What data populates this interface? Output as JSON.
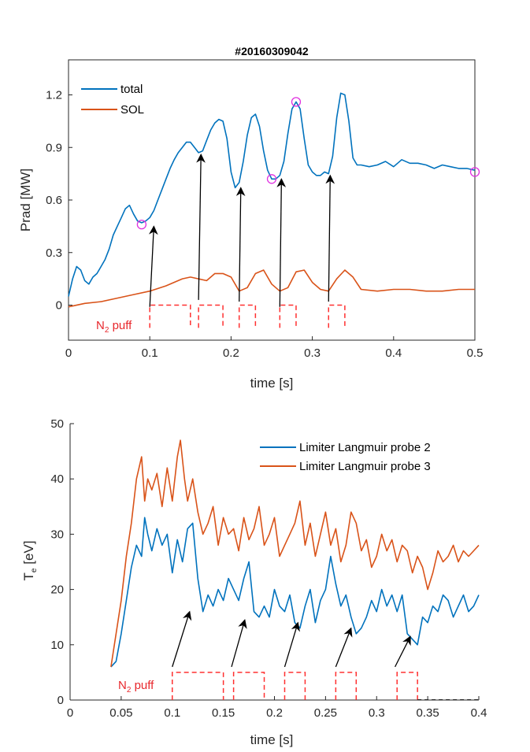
{
  "chart_data": [
    {
      "type": "line",
      "title": "#20160309042",
      "xlabel": "time [s]",
      "ylabel": "Prad [MW]",
      "xlim": [
        0,
        0.5
      ],
      "ylim": [
        -0.2,
        1.4
      ],
      "xticks": [
        0,
        0.1,
        0.2,
        0.3,
        0.4,
        0.5
      ],
      "xtick_labels": [
        "0",
        "0.1",
        "0.2",
        "0.3",
        "0.4",
        "0.5"
      ],
      "yticks": [
        0,
        0.3,
        0.6,
        0.9,
        1.2
      ],
      "ytick_labels": [
        "0",
        "0.3",
        "0.6",
        "0.9",
        "1.2"
      ],
      "grid": false,
      "legend": "top-left",
      "series": [
        {
          "name": "total",
          "color": "#0072BD",
          "x": [
            0,
            0.005,
            0.01,
            0.015,
            0.02,
            0.025,
            0.03,
            0.035,
            0.04,
            0.045,
            0.05,
            0.055,
            0.06,
            0.065,
            0.07,
            0.075,
            0.08,
            0.085,
            0.09,
            0.095,
            0.1,
            0.105,
            0.11,
            0.115,
            0.12,
            0.125,
            0.13,
            0.135,
            0.14,
            0.145,
            0.15,
            0.155,
            0.16,
            0.165,
            0.17,
            0.175,
            0.18,
            0.185,
            0.19,
            0.195,
            0.2,
            0.205,
            0.21,
            0.215,
            0.22,
            0.225,
            0.23,
            0.235,
            0.24,
            0.245,
            0.25,
            0.255,
            0.26,
            0.265,
            0.27,
            0.275,
            0.28,
            0.285,
            0.29,
            0.295,
            0.3,
            0.305,
            0.31,
            0.315,
            0.32,
            0.325,
            0.33,
            0.335,
            0.34,
            0.345,
            0.35,
            0.355,
            0.36,
            0.37,
            0.38,
            0.39,
            0.4,
            0.41,
            0.42,
            0.43,
            0.44,
            0.45,
            0.46,
            0.47,
            0.48,
            0.49,
            0.5
          ],
          "y": [
            0.05,
            0.15,
            0.22,
            0.2,
            0.14,
            0.12,
            0.16,
            0.18,
            0.22,
            0.26,
            0.32,
            0.4,
            0.45,
            0.5,
            0.55,
            0.57,
            0.52,
            0.48,
            0.47,
            0.48,
            0.5,
            0.54,
            0.6,
            0.66,
            0.72,
            0.78,
            0.83,
            0.87,
            0.9,
            0.93,
            0.93,
            0.9,
            0.87,
            0.88,
            0.94,
            1.0,
            1.04,
            1.06,
            1.05,
            0.95,
            0.76,
            0.67,
            0.7,
            0.82,
            0.97,
            1.07,
            1.09,
            1.02,
            0.88,
            0.77,
            0.72,
            0.72,
            0.74,
            0.82,
            0.98,
            1.12,
            1.16,
            1.12,
            0.95,
            0.8,
            0.76,
            0.74,
            0.74,
            0.76,
            0.75,
            0.85,
            1.07,
            1.21,
            1.2,
            1.05,
            0.84,
            0.8,
            0.8,
            0.79,
            0.8,
            0.82,
            0.79,
            0.83,
            0.81,
            0.81,
            0.8,
            0.78,
            0.8,
            0.79,
            0.78,
            0.78,
            0.77
          ]
        },
        {
          "name": "SOL",
          "color": "#D95319",
          "x": [
            0,
            0.02,
            0.04,
            0.06,
            0.08,
            0.1,
            0.12,
            0.14,
            0.15,
            0.16,
            0.17,
            0.18,
            0.19,
            0.2,
            0.21,
            0.22,
            0.23,
            0.24,
            0.25,
            0.26,
            0.27,
            0.28,
            0.29,
            0.3,
            0.31,
            0.32,
            0.33,
            0.34,
            0.35,
            0.36,
            0.38,
            0.4,
            0.42,
            0.44,
            0.46,
            0.48,
            0.5
          ],
          "y": [
            -0.01,
            0.01,
            0.02,
            0.04,
            0.06,
            0.08,
            0.11,
            0.15,
            0.16,
            0.15,
            0.14,
            0.18,
            0.18,
            0.16,
            0.08,
            0.1,
            0.18,
            0.2,
            0.12,
            0.08,
            0.1,
            0.19,
            0.2,
            0.13,
            0.09,
            0.08,
            0.15,
            0.2,
            0.16,
            0.09,
            0.08,
            0.09,
            0.09,
            0.08,
            0.08,
            0.09,
            0.09
          ]
        }
      ],
      "markers": {
        "color": "#E030E0",
        "points": [
          [
            0.09,
            0.46
          ],
          [
            0.25,
            0.72
          ],
          [
            0.28,
            1.16
          ],
          [
            0.5,
            0.76
          ]
        ]
      },
      "arrows": [
        {
          "from": [
            0.1,
            -0.01
          ],
          "to": [
            0.105,
            0.45
          ]
        },
        {
          "from": [
            0.16,
            0.03
          ],
          "to": [
            0.163,
            0.86
          ]
        },
        {
          "from": [
            0.21,
            0.02
          ],
          "to": [
            0.212,
            0.67
          ]
        },
        {
          "from": [
            0.26,
            -0.01
          ],
          "to": [
            0.262,
            0.72
          ]
        },
        {
          "from": [
            0.32,
            0.02
          ],
          "to": [
            0.322,
            0.74
          ]
        }
      ],
      "puff_windows": [
        [
          0.1,
          0.15
        ],
        [
          0.16,
          0.19
        ],
        [
          0.21,
          0.23
        ],
        [
          0.26,
          0.28
        ],
        [
          0.32,
          0.34
        ]
      ],
      "puff_level": 0,
      "puff_color": "#FF3030",
      "puff_label": "N",
      "puff_label_sub": "2",
      "puff_label_suffix": " puff"
    },
    {
      "type": "line",
      "title": "",
      "xlabel": "time [s]",
      "ylabel": "T",
      "ylabel_sub": "e",
      "ylabel_suffix": " [eV]",
      "xlim": [
        0,
        0.4
      ],
      "ylim": [
        0,
        50
      ],
      "xticks": [
        0,
        0.05,
        0.1,
        0.15,
        0.2,
        0.25,
        0.3,
        0.35,
        0.4
      ],
      "xtick_labels": [
        "0",
        "0.05",
        "0.1",
        "0.15",
        "0.2",
        "0.25",
        "0.3",
        "0.35",
        "0.4"
      ],
      "yticks": [
        0,
        10,
        20,
        30,
        40,
        50
      ],
      "ytick_labels": [
        "0",
        "10",
        "20",
        "30",
        "40",
        "50"
      ],
      "grid": false,
      "legend": "top-right",
      "series": [
        {
          "name": "Limiter Langmuir probe 2",
          "color": "#0072BD",
          "x": [
            0.04,
            0.045,
            0.05,
            0.055,
            0.06,
            0.065,
            0.07,
            0.073,
            0.076,
            0.08,
            0.085,
            0.09,
            0.095,
            0.1,
            0.105,
            0.11,
            0.115,
            0.12,
            0.125,
            0.13,
            0.135,
            0.14,
            0.145,
            0.15,
            0.155,
            0.16,
            0.165,
            0.17,
            0.175,
            0.18,
            0.185,
            0.19,
            0.195,
            0.2,
            0.205,
            0.21,
            0.215,
            0.22,
            0.225,
            0.23,
            0.235,
            0.24,
            0.245,
            0.25,
            0.255,
            0.26,
            0.265,
            0.27,
            0.275,
            0.28,
            0.285,
            0.29,
            0.295,
            0.3,
            0.305,
            0.31,
            0.315,
            0.32,
            0.325,
            0.33,
            0.335,
            0.34,
            0.345,
            0.35,
            0.355,
            0.36,
            0.365,
            0.37,
            0.375,
            0.38,
            0.385,
            0.39,
            0.395,
            0.4
          ],
          "y": [
            6,
            7,
            12,
            18,
            24,
            28,
            26,
            33,
            30,
            27,
            31,
            28,
            30,
            23,
            29,
            25,
            31,
            32,
            22,
            16,
            19,
            17,
            20,
            18,
            22,
            20,
            18,
            22,
            25,
            16,
            15,
            17,
            15,
            20,
            17,
            16,
            19,
            14,
            13,
            17,
            20,
            14,
            18,
            20,
            26,
            21,
            17,
            19,
            15,
            12,
            13,
            15,
            18,
            16,
            20,
            17,
            19,
            16,
            19,
            12,
            11,
            10,
            15,
            14,
            17,
            16,
            19,
            18,
            15,
            17,
            19,
            16,
            17,
            19
          ]
        },
        {
          "name": "Limiter Langmuir probe 3",
          "color": "#D95319",
          "x": [
            0.04,
            0.045,
            0.05,
            0.055,
            0.06,
            0.065,
            0.07,
            0.073,
            0.076,
            0.08,
            0.085,
            0.09,
            0.095,
            0.1,
            0.105,
            0.108,
            0.112,
            0.115,
            0.12,
            0.125,
            0.13,
            0.135,
            0.14,
            0.145,
            0.15,
            0.155,
            0.16,
            0.165,
            0.17,
            0.175,
            0.18,
            0.185,
            0.19,
            0.195,
            0.2,
            0.205,
            0.21,
            0.215,
            0.22,
            0.225,
            0.23,
            0.235,
            0.24,
            0.245,
            0.25,
            0.255,
            0.26,
            0.265,
            0.27,
            0.275,
            0.28,
            0.285,
            0.29,
            0.295,
            0.3,
            0.305,
            0.31,
            0.315,
            0.32,
            0.325,
            0.33,
            0.335,
            0.34,
            0.345,
            0.35,
            0.355,
            0.36,
            0.365,
            0.37,
            0.375,
            0.38,
            0.385,
            0.39,
            0.395,
            0.4
          ],
          "y": [
            6,
            12,
            18,
            26,
            32,
            40,
            44,
            36,
            40,
            38,
            41,
            35,
            42,
            36,
            44,
            47,
            40,
            36,
            40,
            34,
            30,
            32,
            35,
            28,
            33,
            30,
            31,
            27,
            33,
            29,
            31,
            35,
            28,
            30,
            33,
            26,
            28,
            30,
            32,
            36,
            28,
            32,
            26,
            30,
            34,
            28,
            31,
            25,
            28,
            34,
            32,
            27,
            29,
            24,
            26,
            30,
            27,
            29,
            25,
            28,
            27,
            23,
            26,
            24,
            20,
            23,
            27,
            25,
            26,
            28,
            25,
            27,
            26,
            27,
            28
          ]
        }
      ],
      "arrows": [
        {
          "from": [
            0.1,
            6
          ],
          "to": [
            0.117,
            16
          ]
        },
        {
          "from": [
            0.158,
            6
          ],
          "to": [
            0.171,
            14.5
          ]
        },
        {
          "from": [
            0.21,
            6
          ],
          "to": [
            0.223,
            14
          ]
        },
        {
          "from": [
            0.26,
            6
          ],
          "to": [
            0.275,
            13
          ]
        },
        {
          "from": [
            0.318,
            6
          ],
          "to": [
            0.333,
            11.5
          ]
        }
      ],
      "puff_windows": [
        [
          0.1,
          0.15
        ],
        [
          0.16,
          0.19
        ],
        [
          0.21,
          0.23
        ],
        [
          0.26,
          0.28
        ],
        [
          0.32,
          0.34
        ]
      ],
      "puff_level": 0,
      "puff_top": 5,
      "puff_color": "#FF3030",
      "puff_label": "N",
      "puff_label_sub": "2",
      "puff_label_suffix": " puff"
    }
  ]
}
